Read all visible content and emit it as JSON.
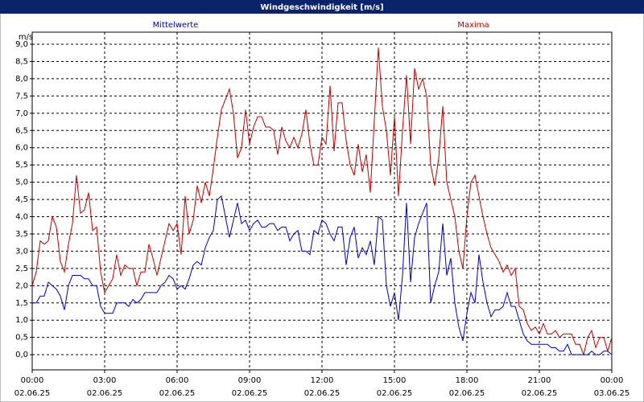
{
  "chart_data": {
    "type": "line",
    "title": "Windgeschwindigkeit [m/s]",
    "y_unit": "m/s",
    "xlim": [
      0,
      1440
    ],
    "xticks": [
      {
        "value": 0,
        "label": "00:00"
      },
      {
        "value": 180,
        "label": "03:00"
      },
      {
        "value": 360,
        "label": "06:00"
      },
      {
        "value": 540,
        "label": "09:00"
      },
      {
        "value": 720,
        "label": "12:00"
      },
      {
        "value": 900,
        "label": "15:00"
      },
      {
        "value": 1080,
        "label": "18:00"
      },
      {
        "value": 1260,
        "label": "21:00"
      },
      {
        "value": 1440,
        "label": "00:00"
      }
    ],
    "xtick_dates": [
      "02.06.25",
      "02.06.25",
      "02.06.25",
      "02.06.25",
      "02.06.25",
      "02.06.25",
      "02.06.25",
      "02.06.25",
      "03.06.25"
    ],
    "ylim": [
      -0.44,
      9.35
    ],
    "yticks": [
      {
        "value": 0,
        "label": "0,0"
      },
      {
        "value": 0.5,
        "label": "0,5"
      },
      {
        "value": 1,
        "label": "1,0"
      },
      {
        "value": 1.5,
        "label": "1,5"
      },
      {
        "value": 2,
        "label": "2,0"
      },
      {
        "value": 2.5,
        "label": "2,5"
      },
      {
        "value": 3,
        "label": "3,0"
      },
      {
        "value": 3.5,
        "label": "3,5"
      },
      {
        "value": 4,
        "label": "4,0"
      },
      {
        "value": 4.5,
        "label": "4,5"
      },
      {
        "value": 5,
        "label": "5,0"
      },
      {
        "value": 5.5,
        "label": "5,5"
      },
      {
        "value": 6,
        "label": "6,0"
      },
      {
        "value": 6.5,
        "label": "6,5"
      },
      {
        "value": 7,
        "label": "7,0"
      },
      {
        "value": 7.5,
        "label": "7,5"
      },
      {
        "value": 8,
        "label": "8,0"
      },
      {
        "value": 8.5,
        "label": "8,5"
      },
      {
        "value": 9,
        "label": "9,0"
      }
    ],
    "grid": true,
    "x": [
      0,
      10,
      20,
      30,
      40,
      50,
      60,
      70,
      80,
      90,
      100,
      110,
      120,
      130,
      140,
      150,
      160,
      170,
      180,
      190,
      200,
      210,
      220,
      230,
      240,
      250,
      260,
      270,
      280,
      290,
      300,
      310,
      320,
      330,
      340,
      350,
      360,
      370,
      380,
      390,
      400,
      410,
      420,
      430,
      440,
      450,
      460,
      470,
      480,
      490,
      500,
      510,
      520,
      530,
      540,
      550,
      560,
      570,
      580,
      590,
      600,
      610,
      620,
      630,
      640,
      650,
      660,
      670,
      680,
      690,
      700,
      710,
      720,
      730,
      740,
      750,
      760,
      770,
      780,
      790,
      800,
      810,
      820,
      830,
      840,
      850,
      860,
      870,
      880,
      890,
      900,
      910,
      920,
      930,
      940,
      950,
      960,
      970,
      980,
      990,
      1000,
      1010,
      1020,
      1030,
      1040,
      1050,
      1060,
      1070,
      1080,
      1090,
      1100,
      1110,
      1120,
      1130,
      1140,
      1150,
      1160,
      1170,
      1180,
      1190,
      1200,
      1210,
      1220,
      1230,
      1240,
      1250,
      1260,
      1270,
      1280,
      1290,
      1300,
      1310,
      1320,
      1330,
      1340,
      1350,
      1360,
      1370,
      1380,
      1390,
      1400,
      1410,
      1420,
      1430,
      1440
    ],
    "series": [
      {
        "name": "Mittelwerte",
        "color": "#0000c0",
        "values": [
          1.5,
          1.5,
          1.7,
          1.7,
          2.1,
          2.0,
          1.9,
          1.7,
          1.3,
          2.0,
          2.3,
          2.3,
          2.3,
          2.2,
          2.2,
          2.0,
          2.0,
          1.4,
          1.2,
          1.2,
          1.2,
          1.5,
          1.5,
          1.5,
          1.4,
          1.6,
          1.5,
          1.6,
          1.8,
          1.8,
          1.8,
          1.8,
          2.0,
          2.1,
          2.3,
          2.2,
          1.9,
          2.0,
          1.9,
          2.2,
          2.6,
          2.7,
          2.6,
          3.1,
          3.4,
          3.6,
          4.5,
          4.6,
          4.0,
          3.4,
          3.9,
          4.4,
          3.8,
          3.9,
          3.6,
          3.8,
          3.9,
          3.7,
          3.7,
          3.8,
          3.8,
          3.6,
          3.7,
          3.7,
          3.3,
          3.5,
          3.6,
          3.0,
          3.0,
          2.9,
          3.6,
          3.5,
          3.9,
          3.8,
          3.5,
          3.3,
          3.7,
          3.7,
          2.6,
          3.4,
          3.7,
          2.8,
          3.1,
          2.9,
          3.3,
          2.6,
          4.0,
          3.9,
          2.0,
          1.4,
          1.8,
          1.0,
          2.3,
          4.4,
          2.1,
          3.4,
          3.8,
          4.1,
          4.4,
          1.5,
          2.0,
          2.4,
          3.8,
          2.3,
          2.8,
          1.5,
          0.8,
          0.4,
          1.2,
          1.8,
          1.5,
          2.9,
          2.1,
          1.5,
          1.1,
          1.3,
          1.3,
          1.4,
          1.8,
          1.4,
          1.4,
          1.0,
          0.6,
          0.4,
          0.3,
          0.3,
          0.3,
          0.3,
          0.3,
          0.2,
          0.2,
          0.1,
          0.1,
          0.3,
          0.0,
          0.0,
          0.0,
          0.0,
          0.0,
          0.1,
          0.0,
          0.0,
          0.1,
          0.1,
          0.0
        ]
      },
      {
        "name": "Maxima",
        "color": "#c00000",
        "values": [
          2.0,
          2.4,
          3.3,
          3.2,
          3.3,
          4.0,
          3.7,
          2.7,
          2.4,
          3.2,
          3.8,
          5.2,
          4.1,
          4.2,
          4.7,
          3.6,
          3.7,
          2.4,
          1.8,
          2.0,
          2.2,
          2.9,
          2.3,
          2.6,
          2.5,
          2.5,
          2.0,
          2.4,
          2.4,
          3.2,
          2.8,
          2.3,
          2.8,
          3.3,
          3.8,
          3.6,
          3.8,
          2.9,
          4.6,
          3.5,
          3.9,
          4.9,
          4.4,
          5.0,
          4.6,
          5.4,
          6.3,
          7.1,
          7.4,
          7.7,
          7.0,
          5.7,
          6.0,
          7.1,
          6.1,
          6.6,
          6.9,
          6.9,
          6.6,
          6.6,
          6.5,
          5.8,
          6.6,
          6.2,
          6.0,
          6.3,
          6.0,
          6.4,
          7.1,
          6.1,
          5.5,
          5.5,
          6.3,
          6.1,
          7.8,
          5.9,
          7.3,
          7.3,
          6.2,
          5.5,
          5.2,
          6.1,
          5.3,
          5.8,
          4.7,
          6.8,
          8.9,
          7.2,
          6.5,
          5.2,
          6.9,
          4.6,
          6.5,
          8.1,
          6.1,
          8.3,
          7.7,
          8.0,
          7.5,
          5.5,
          4.9,
          5.7,
          7.2,
          5.0,
          4.5,
          4.0,
          3.0,
          2.5,
          4.0,
          5.0,
          5.2,
          4.6,
          4.0,
          3.5,
          3.1,
          2.9,
          2.7,
          2.4,
          2.6,
          2.3,
          2.5,
          1.4,
          1.3,
          0.9,
          0.7,
          0.8,
          0.6,
          0.9,
          0.6,
          0.6,
          0.7,
          0.5,
          0.6,
          0.6,
          0.6,
          0.3,
          0.3,
          0.0,
          0.5,
          0.7,
          0.2,
          0.5,
          0.5,
          0.1,
          0.5
        ]
      }
    ]
  }
}
